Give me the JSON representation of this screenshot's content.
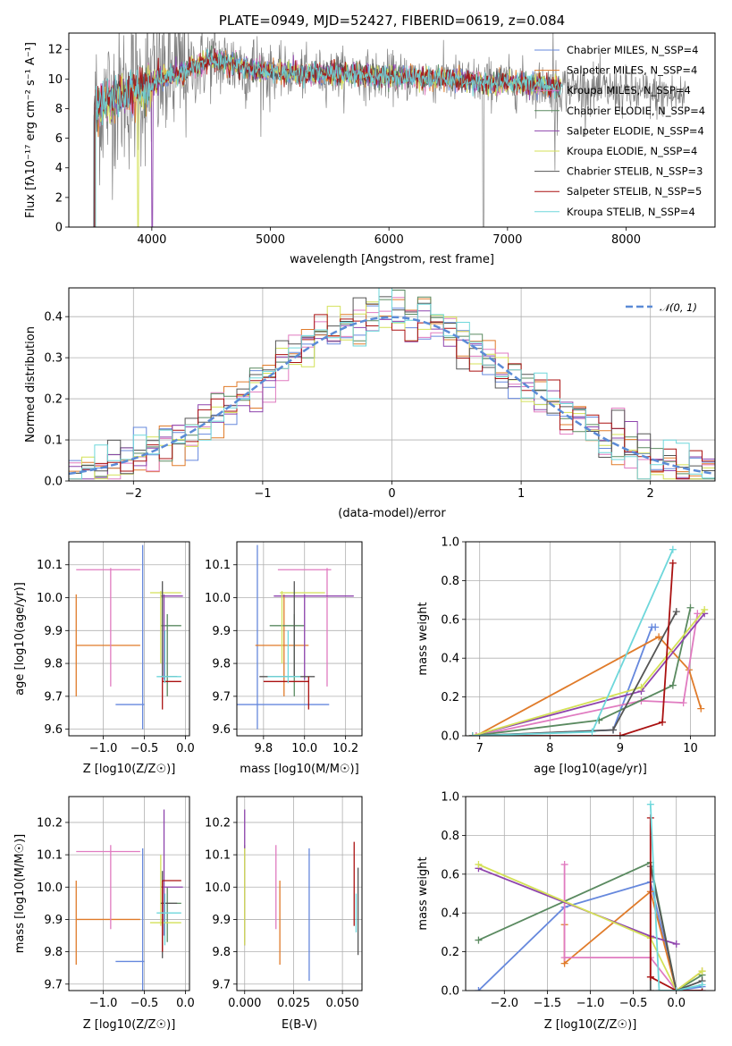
{
  "chart_data": [
    {
      "type": "line",
      "title": "PLATE=0949, MJD=52427, FIBERID=0619, z=0.084",
      "xlabel": "wavelength [Angstrom, rest frame]",
      "ylabel": "Flux [fλ10⁻¹⁷ erg cm⁻² s⁻¹ A⁻¹]",
      "xlim": [
        3300,
        8750
      ],
      "ylim": [
        0,
        13.1
      ],
      "xticks": [
        "4000",
        "5000",
        "6000",
        "7000",
        "8000"
      ],
      "yticks": [
        "0",
        "2",
        "4",
        "6",
        "8",
        "10",
        "12"
      ],
      "grid": false,
      "legend": "right",
      "legend_entries": [
        "Chabrier MILES, N_SSP=4",
        "Salpeter MILES, N_SSP=4",
        "Kroupa MILES, N_SSP=4",
        "Chabrier ELODIE, N_SSP=4",
        "Salpeter ELODIE, N_SSP=4",
        "Kroupa ELODIE, N_SSP=4",
        "Chabrier STELIB, N_SSP=3",
        "Salpeter STELIB, N_SSP=5",
        "Kroupa STELIB, N_SSP=4"
      ],
      "spectrum_shape": {
        "x": [
          3520,
          3700,
          3900,
          4100,
          4300,
          4500,
          4800,
          5000,
          5300,
          5600,
          5900,
          6200,
          6500,
          6800,
          7100,
          7400,
          7700,
          8000,
          8300,
          8500
        ],
        "flux": [
          8.0,
          8.8,
          9.3,
          10.1,
          10.6,
          11.3,
          10.8,
          10.5,
          10.3,
          10.4,
          10.2,
          10.1,
          10.0,
          9.8,
          9.7,
          9.5,
          9.3,
          9.1,
          8.9,
          8.8
        ]
      }
    },
    {
      "type": "histogram",
      "xlabel": "(data-model)/error",
      "ylabel": "Normed distribution",
      "xlim": [
        -2.5,
        2.5
      ],
      "ylim": [
        0,
        0.47
      ],
      "xticks": [
        "−2",
        "−1",
        "0",
        "1",
        "2"
      ],
      "yticks": [
        "0.0",
        "0.1",
        "0.2",
        "0.3",
        "0.4"
      ],
      "grid": true,
      "legend": "top-right",
      "legend_entry": "𝒩(0, 1)",
      "bin_width": 0.1,
      "reference_curve": "normal pdf mean 0 sigma 1"
    },
    {
      "type": "scatter",
      "xlabel": "Z [log10(Z/Z☉)]",
      "ylabel": "age  [log10(age/yr)]",
      "xlim": [
        -1.42,
        0.05
      ],
      "ylim": [
        9.58,
        10.17
      ],
      "xticks": [
        "−1.0",
        "−0.5",
        "0.0"
      ],
      "yticks": [
        "9.6",
        "9.7",
        "9.8",
        "9.9",
        "10.0",
        "10.1"
      ],
      "grid": true
    },
    {
      "type": "scatter",
      "xlabel": "mass [log10(M/M☉)]",
      "ylabel": "",
      "xlim": [
        9.67,
        10.28
      ],
      "ylim": [
        9.58,
        10.17
      ],
      "xticks": [
        "9.8",
        "10.0",
        "10.2"
      ],
      "yticks": [
        "9.6",
        "9.7",
        "9.8",
        "9.9",
        "10.0",
        "10.1"
      ],
      "grid": true
    },
    {
      "type": "line",
      "xlabel": "age  [log10(age/yr)]",
      "ylabel": "mass weight",
      "xlim": [
        6.8,
        10.35
      ],
      "ylim": [
        0,
        1.0
      ],
      "xticks": [
        "7",
        "8",
        "9",
        "10"
      ],
      "yticks": [
        "0.0",
        "0.2",
        "0.4",
        "0.6",
        "0.8",
        "1.0"
      ],
      "grid": true
    },
    {
      "type": "scatter",
      "xlabel": "Z [log10(Z/Z☉)]",
      "ylabel": "mass [log10(M/M☉)]",
      "xlim": [
        -1.42,
        0.05
      ],
      "ylim": [
        9.68,
        10.28
      ],
      "xticks": [
        "−1.0",
        "−0.5",
        "0.0"
      ],
      "yticks": [
        "9.7",
        "9.8",
        "9.9",
        "10.0",
        "10.1",
        "10.2"
      ],
      "grid": true
    },
    {
      "type": "scatter",
      "xlabel": "E(B-V)",
      "ylabel": "",
      "xlim": [
        -0.004,
        0.06
      ],
      "ylim": [
        9.68,
        10.28
      ],
      "xticks": [
        "0.000",
        "0.025",
        "0.050"
      ],
      "yticks": [
        "9.7",
        "9.8",
        "9.9",
        "10.0",
        "10.1",
        "10.2"
      ],
      "grid": true
    },
    {
      "type": "line",
      "xlabel": "Z [log10(Z/Z☉)]",
      "ylabel": "mass weight",
      "xlim": [
        -2.45,
        0.45
      ],
      "ylim": [
        0,
        1.0
      ],
      "xticks": [
        "−2.0",
        "−1.5",
        "−1.0",
        "−0.5",
        "0.0"
      ],
      "yticks": [
        "0.0",
        "0.2",
        "0.4",
        "0.6",
        "0.8",
        "1.0"
      ],
      "grid": true
    }
  ],
  "models": [
    {
      "name": "Chabrier MILES",
      "color": "#6688dd",
      "age": 9.675,
      "age_lo": 9.6,
      "age_hi": 10.16,
      "Z": -0.52,
      "Z_lo": -0.85,
      "Z_hi": -0.5,
      "mass": 9.77,
      "mass_lo": 9.67,
      "mass_hi": 10.12,
      "ebv": 0.033,
      "ebv_lo": 9.71,
      "ebv_hi": 10.12,
      "wa": [
        [
          6.95,
          0.0
        ],
        [
          8.9,
          0.03
        ],
        [
          9.45,
          0.56
        ],
        [
          9.5,
          0.56
        ]
      ],
      "wz": [
        [
          -2.3,
          0.0
        ],
        [
          -1.3,
          0.43
        ],
        [
          -0.3,
          0.56
        ],
        [
          0.0,
          0.0
        ],
        [
          0.3,
          0.02
        ]
      ]
    },
    {
      "name": "Salpeter MILES",
      "color": "#e07b2a",
      "age": 9.855,
      "age_lo": 9.7,
      "age_hi": 10.01,
      "Z": -1.33,
      "Z_lo": -1.33,
      "Z_hi": -0.55,
      "mass": 9.9,
      "mass_lo": 9.76,
      "mass_hi": 10.02,
      "ebv": 0.018,
      "ebv_lo": 9.76,
      "ebv_hi": 10.02,
      "wa": [
        [
          6.95,
          0.0
        ],
        [
          9.55,
          0.51
        ],
        [
          9.98,
          0.34
        ],
        [
          10.15,
          0.14
        ]
      ],
      "wz": [
        [
          -1.3,
          0.34
        ],
        [
          -1.3,
          0.14
        ],
        [
          -0.3,
          0.51
        ],
        [
          0.0,
          0.0
        ],
        [
          0.3,
          0.1
        ]
      ]
    },
    {
      "name": "Kroupa MILES",
      "color": "#e07bc0",
      "age": 10.085,
      "age_lo": 9.73,
      "age_hi": 10.09,
      "Z": -0.91,
      "Z_lo": -1.33,
      "Z_hi": -0.55,
      "mass": 10.11,
      "mass_lo": 9.87,
      "mass_hi": 10.13,
      "ebv": 0.016,
      "ebv_lo": 9.87,
      "ebv_hi": 10.13,
      "wa": [
        [
          6.95,
          0.0
        ],
        [
          9.3,
          0.18
        ],
        [
          9.9,
          0.17
        ],
        [
          10.1,
          0.63
        ]
      ],
      "wz": [
        [
          -1.3,
          0.65
        ],
        [
          -1.3,
          0.17
        ],
        [
          -0.3,
          0.17
        ],
        [
          0.0,
          0.0
        ],
        [
          0.3,
          0.0
        ]
      ]
    },
    {
      "name": "Chabrier ELODIE",
      "color": "#5a8a60",
      "age": 9.915,
      "age_lo": 9.7,
      "age_hi": 9.95,
      "Z": -0.22,
      "Z_lo": -0.3,
      "Z_hi": -0.05,
      "mass": 9.95,
      "mass_lo": 9.83,
      "mass_hi": 10.0,
      "ebv": 0.0,
      "ebv_lo": 9.83,
      "ebv_hi": 10.13,
      "wa": [
        [
          6.9,
          0.0
        ],
        [
          8.7,
          0.08
        ],
        [
          9.75,
          0.26
        ],
        [
          10.0,
          0.66
        ]
      ],
      "wz": [
        [
          -2.3,
          0.26
        ],
        [
          -0.3,
          0.66
        ],
        [
          0.0,
          0.0
        ],
        [
          0.3,
          0.08
        ]
      ]
    },
    {
      "name": "Salpeter ELODIE",
      "color": "#8e44ad",
      "age": 10.005,
      "age_lo": 9.75,
      "age_hi": 10.01,
      "Z": -0.26,
      "Z_lo": -0.3,
      "Z_hi": -0.03,
      "mass": 10.0,
      "mass_lo": 9.85,
      "mass_hi": 10.24,
      "ebv": 0.0,
      "ebv_lo": 9.82,
      "ebv_hi": 10.24,
      "wa": [
        [
          6.9,
          0.0
        ],
        [
          9.3,
          0.23
        ],
        [
          10.2,
          0.63
        ]
      ],
      "wz": [
        [
          -2.3,
          0.63
        ],
        [
          -0.3,
          0.28
        ],
        [
          0.0,
          0.24
        ]
      ]
    },
    {
      "name": "Kroupa ELODIE",
      "color": "#d4e157",
      "age": 10.015,
      "age_lo": 9.8,
      "age_hi": 10.02,
      "Z": -0.3,
      "Z_lo": -0.43,
      "Z_hi": -0.05,
      "mass": 9.89,
      "mass_lo": 9.88,
      "mass_hi": 10.1,
      "ebv": 0.0,
      "ebv_lo": 9.82,
      "ebv_hi": 10.12,
      "wa": [
        [
          6.9,
          0.0
        ],
        [
          9.3,
          0.25
        ],
        [
          10.2,
          0.65
        ]
      ],
      "wz": [
        [
          -2.3,
          0.65
        ],
        [
          -0.3,
          0.27
        ],
        [
          0.0,
          0.0
        ],
        [
          0.3,
          0.1
        ]
      ]
    },
    {
      "name": "Chabrier STELIB",
      "color": "#555555",
      "age": 9.76,
      "age_lo": 9.76,
      "age_hi": 10.05,
      "Z": -0.28,
      "Z_lo": -0.3,
      "Z_hi": -0.1,
      "mass": 9.95,
      "mass_lo": 9.78,
      "mass_hi": 10.05,
      "ebv": 0.058,
      "ebv_lo": 9.79,
      "ebv_hi": 10.06,
      "wa": [
        [
          6.9,
          0.0
        ],
        [
          8.9,
          0.03
        ],
        [
          9.8,
          0.64
        ]
      ],
      "wz": [
        [
          -0.3,
          0.0
        ],
        [
          -0.3,
          0.64
        ],
        [
          0.0,
          0.0
        ],
        [
          0.3,
          0.05
        ]
      ]
    },
    {
      "name": "Salpeter STELIB",
      "color": "#aa1111",
      "age": 9.745,
      "age_lo": 9.66,
      "age_hi": 9.76,
      "Z": -0.28,
      "Z_lo": -0.28,
      "Z_hi": -0.05,
      "mass": 10.02,
      "mass_lo": 9.8,
      "mass_hi": 10.02,
      "ebv": 0.056,
      "ebv_lo": 9.88,
      "ebv_hi": 10.14,
      "wa": [
        [
          6.9,
          0.0
        ],
        [
          9.0,
          0.0
        ],
        [
          9.6,
          0.07
        ],
        [
          9.75,
          0.89
        ]
      ],
      "wz": [
        [
          -0.3,
          0.89
        ],
        [
          -0.3,
          0.07
        ],
        [
          0.0,
          0.0
        ],
        [
          0.3,
          0.0
        ]
      ]
    },
    {
      "name": "Kroupa STELIB",
      "color": "#6ed7db",
      "age": 9.76,
      "age_lo": 9.74,
      "age_hi": 9.9,
      "Z": -0.25,
      "Z_lo": -0.35,
      "Z_hi": -0.05,
      "mass": 9.92,
      "mass_lo": 9.82,
      "mass_hi": 9.98,
      "ebv": 0.057,
      "ebv_lo": 9.86,
      "ebv_hi": 9.98,
      "wa": [
        [
          6.9,
          0.0
        ],
        [
          8.6,
          0.02
        ],
        [
          9.75,
          0.96
        ]
      ],
      "wz": [
        [
          -0.3,
          0.96
        ],
        [
          -0.2,
          0.0
        ],
        [
          0.0,
          0.0
        ],
        [
          0.3,
          0.03
        ]
      ]
    }
  ]
}
